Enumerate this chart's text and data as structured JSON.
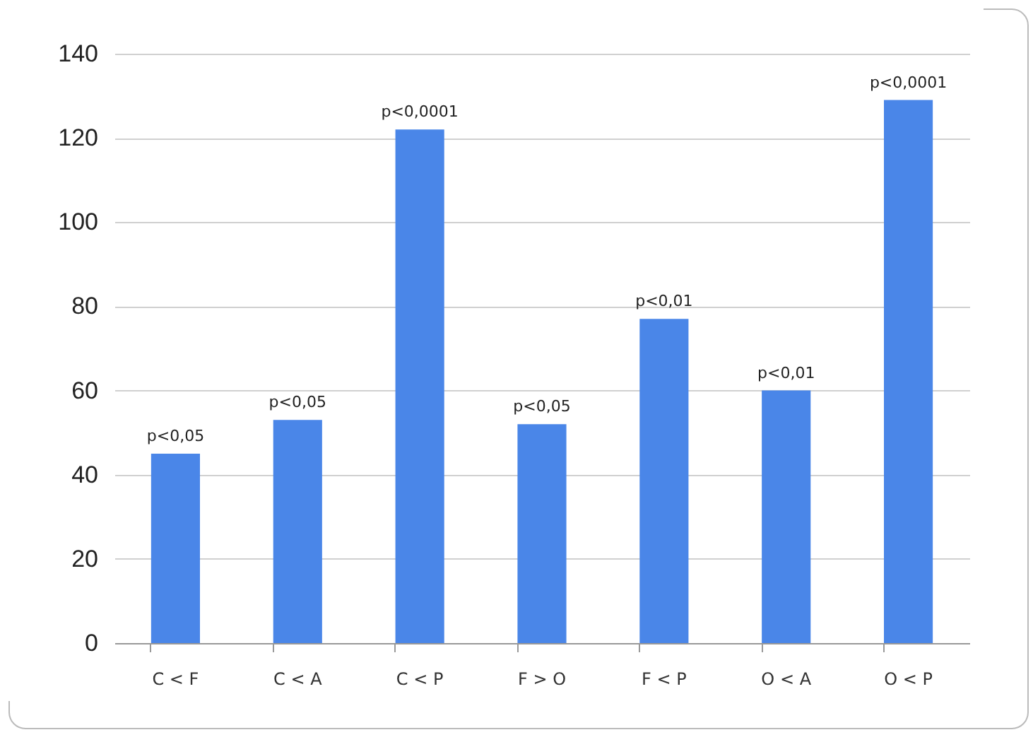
{
  "chart_data": {
    "type": "bar",
    "categories": [
      "C < F",
      "C < A",
      "C < P",
      "F > O",
      "F < P",
      "O < A",
      "O < P"
    ],
    "values": [
      45,
      53,
      122,
      52,
      77,
      60,
      129
    ],
    "value_labels": [
      "p<0,05",
      "p<0,05",
      "p<0,0001",
      "p<0,05",
      "p<0,01",
      "p<0,01",
      "p<0,0001"
    ],
    "color": "#4a86e8",
    "ylim": [
      0,
      140
    ],
    "yticks": [
      0,
      20,
      40,
      60,
      80,
      100,
      120,
      140
    ],
    "grid": "y"
  }
}
